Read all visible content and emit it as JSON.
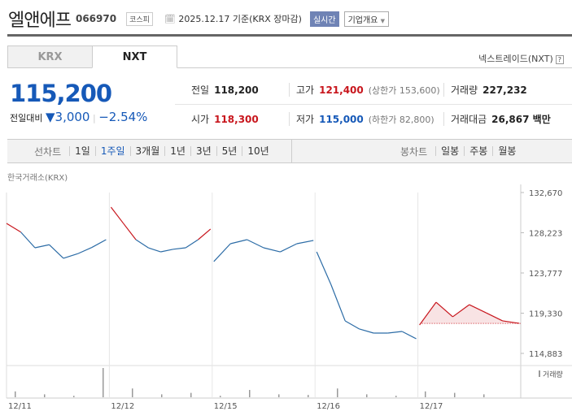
{
  "header": {
    "name": "엘앤에프",
    "code": "066970",
    "market": "코스피",
    "date": "2025.12.17 기준(KRX 장마감)",
    "realtime": "실시간",
    "company": "기업개요"
  },
  "tabs": [
    {
      "label": "KRX",
      "active": false
    },
    {
      "label": "NXT",
      "active": true
    }
  ],
  "nxt_link": "넥스트레이드(NXT)",
  "nxt_help": "?",
  "quote": {
    "price": "115,200",
    "change_label": "전일대비",
    "change": "▼3,000",
    "change_pct": "−2.54%",
    "prev_label": "전일",
    "prev": "118,200",
    "high_label": "고가",
    "high": "121,400",
    "upper_limit": "(상한가 153,600)",
    "volume_label": "거래량",
    "volume": "227,232",
    "open_label": "시가",
    "open": "118,300",
    "low_label": "저가",
    "low": "115,000",
    "lower_limit": "(하한가 82,800)",
    "amount_label": "거래대금",
    "amount": "26,867 백만"
  },
  "periods": {
    "label": "선차트",
    "items": [
      "1일",
      "1주일",
      "3개월",
      "1년",
      "3년",
      "5년",
      "10년"
    ],
    "selected": "1주일"
  },
  "candles": {
    "label": "봉차트",
    "items": [
      "일봉",
      "주봉",
      "월봉"
    ]
  },
  "colors": {
    "up": "#c8161d",
    "down": "#2c6ca6",
    "accent": "#1659b8"
  },
  "chart_data": {
    "type": "line",
    "source_label": "한국거래소(KRX)",
    "volume_label": "거래량",
    "y_ticks": [
      132670,
      128223,
      123777,
      119330,
      114883
    ],
    "ylim": [
      114883,
      132670
    ],
    "x_labels": [
      "12/11",
      "12/12",
      "12/15",
      "12/16",
      "12/17"
    ],
    "prev_close": 118200,
    "days": [
      {
        "date": "12/11",
        "ref": 128000,
        "prices": [
          129260,
          128300,
          126560,
          126900,
          125400,
          125900,
          126600,
          127460
        ]
      },
      {
        "date": "12/12",
        "ref": 127460,
        "prices": [
          131050,
          129250,
          127460,
          126560,
          126110,
          126400,
          126560,
          127460,
          128630
        ]
      },
      {
        "date": "12/15",
        "ref": 128630,
        "prices": [
          125040,
          127010,
          127460,
          126560,
          126110,
          127010,
          127370
        ]
      },
      {
        "date": "12/16",
        "ref": 127370,
        "prices": [
          126110,
          122520,
          118480,
          117580,
          117130,
          117130,
          117310,
          116500
        ]
      },
      {
        "date": "12/17",
        "ref": 118200,
        "prices": [
          118030,
          120540,
          118930,
          120270,
          119380,
          118480,
          118210
        ]
      }
    ],
    "volume_relative": [
      0.2,
      0.1,
      0.05,
      1,
      0.3,
      0.1,
      0.15,
      0.05,
      0.25,
      0.1,
      0.08,
      0.3,
      0.1,
      0.05,
      0.2,
      0.15,
      0.1
    ]
  }
}
